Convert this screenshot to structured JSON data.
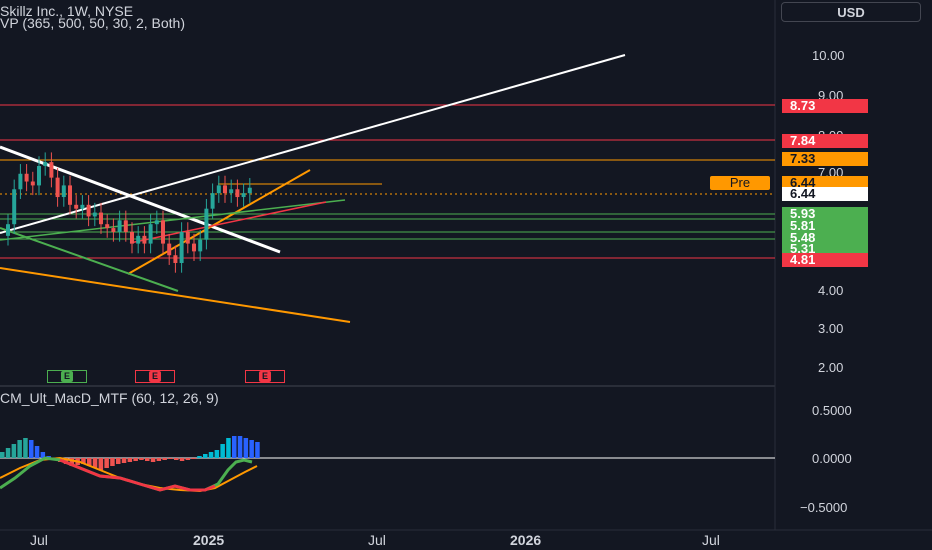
{
  "header": {
    "symbol_line": "Skillz Inc., 1W, NYSE",
    "indicator_vp": "VP (365, 500, 50, 30, 2, Both)",
    "indicator_macd": "CM_Ult_MacD_MTF (60, 12, 26, 9)",
    "currency": "USD"
  },
  "price_axis": {
    "ticks": [
      "10.00",
      "9.00",
      "8.00",
      "7.00",
      "4.00",
      "3.00",
      "2.00"
    ]
  },
  "price_badges": [
    {
      "value": "8.73",
      "bg": "#f23645",
      "fg": "#ffffff"
    },
    {
      "value": "7.84",
      "bg": "#f23645",
      "fg": "#ffffff"
    },
    {
      "value": "7.33",
      "bg": "#ff9800",
      "fg": "#131722"
    },
    {
      "value": "6.44",
      "bg": "#ff9800",
      "fg": "#131722"
    },
    {
      "value": "6.44",
      "bg": "#ffffff",
      "fg": "#131722"
    },
    {
      "value": "5.93",
      "bg": "#4caf50",
      "fg": "#ffffff"
    },
    {
      "value": "5.81",
      "bg": "#4caf50",
      "fg": "#ffffff"
    },
    {
      "value": "5.48",
      "bg": "#4caf50",
      "fg": "#ffffff"
    },
    {
      "value": "5.31",
      "bg": "#4caf50",
      "fg": "#ffffff"
    },
    {
      "value": "4.81",
      "bg": "#f23645",
      "fg": "#ffffff"
    }
  ],
  "pre_label": "Pre",
  "macd_axis": {
    "ticks": [
      "0.5000",
      "0.0000",
      "−0.5000"
    ]
  },
  "earnings_markers": [
    {
      "label": "E",
      "color": "#4caf50"
    },
    {
      "label": "E",
      "color": "#f23645"
    },
    {
      "label": "E",
      "color": "#f23645"
    }
  ],
  "time_axis": {
    "labels": [
      "Jul",
      "2025",
      "Jul",
      "2026",
      "Jul"
    ]
  },
  "colors": {
    "background": "#131722",
    "bull": "#26a69a",
    "bear": "#ef5350",
    "red_line": "#f23645",
    "orange_line": "#ff9800",
    "green_line": "#4caf50",
    "white_line": "#ffffff"
  },
  "chart_data": {
    "type": "candlestick",
    "title": "Skillz Inc., 1W, NYSE",
    "price_ylim": [
      1.5,
      10.5
    ],
    "horizontal_levels": [
      8.73,
      7.84,
      7.33,
      6.44,
      5.93,
      5.81,
      5.48,
      5.31,
      4.81
    ],
    "current_price": 6.44,
    "candles_close": [
      5.5,
      6.4,
      6.8,
      6.6,
      6.5,
      7.0,
      7.1,
      6.7,
      6.2,
      6.5,
      6.0,
      5.9,
      6.0,
      5.7,
      5.8,
      5.5,
      5.4,
      5.3,
      5.6,
      5.3,
      5.0,
      5.2,
      5.0,
      5.5,
      5.6,
      5.0,
      4.7,
      4.5,
      5.3,
      5.0,
      4.8,
      5.1,
      5.9,
      6.3,
      6.5,
      6.3,
      6.4,
      6.2,
      6.3,
      6.44
    ]
  }
}
